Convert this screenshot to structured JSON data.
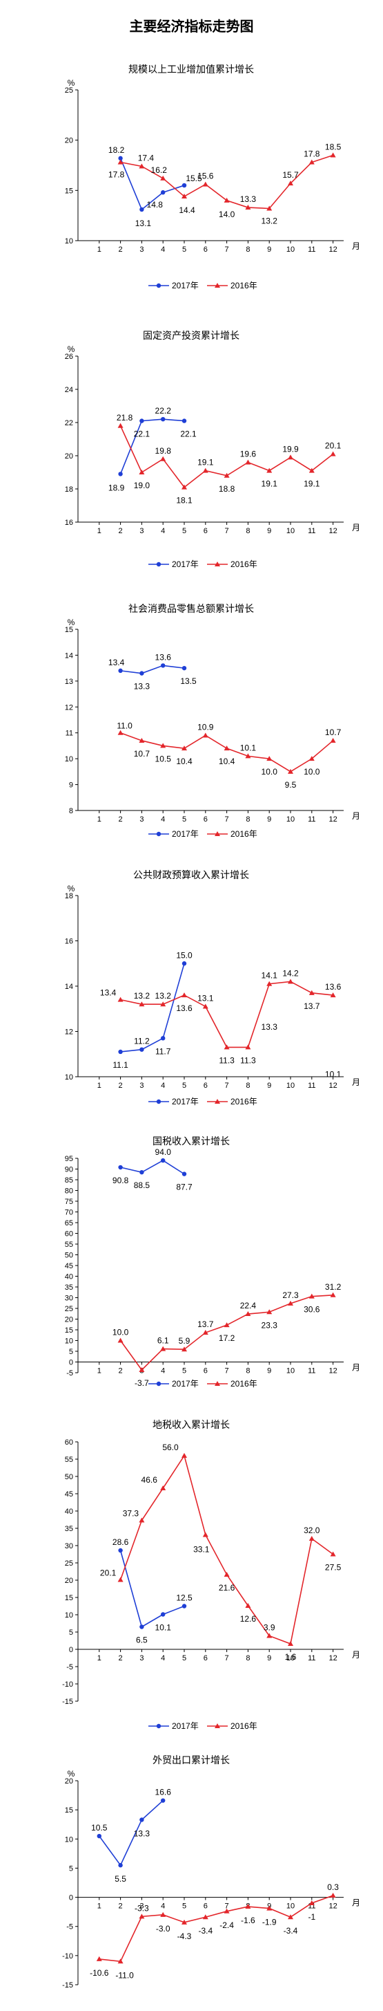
{
  "page_title": "主要经济指标走势图",
  "chart_data": [
    {
      "type": "line",
      "title": "规模以上工业增加值累计增长",
      "ylabel": "%",
      "xlabel": "月",
      "ylim": [
        10,
        25
      ],
      "yticks": [
        10,
        15,
        20,
        25
      ],
      "x": [
        1,
        2,
        3,
        4,
        5,
        6,
        7,
        8,
        9,
        10,
        11,
        12
      ],
      "legend_position": "bottom",
      "series": [
        {
          "name": "2017年",
          "color": "#1f3fd6",
          "marker": "circle",
          "points": [
            [
              2,
              18.2
            ],
            [
              3,
              13.1
            ],
            [
              4,
              14.8
            ],
            [
              5,
              15.5
            ]
          ],
          "labels": [
            "18.2",
            "13.1",
            "14.8",
            "15.5"
          ]
        },
        {
          "name": "2016年",
          "color": "#e3262b",
          "marker": "triangle",
          "points": [
            [
              2,
              17.8
            ],
            [
              3,
              17.4
            ],
            [
              4,
              16.2
            ],
            [
              5,
              14.4
            ],
            [
              6,
              15.6
            ],
            [
              7,
              14.0
            ],
            [
              8,
              13.3
            ],
            [
              9,
              13.2
            ],
            [
              10,
              15.7
            ],
            [
              11,
              17.8
            ],
            [
              12,
              18.5
            ]
          ],
          "labels": [
            "17.8",
            "17.4",
            "16.2",
            "14.4",
            "15.6",
            "14.0",
            "13.3",
            "13.2",
            "15.7",
            "17.8",
            "18.5"
          ]
        }
      ]
    },
    {
      "type": "line",
      "title": "固定资产投资累计增长",
      "ylabel": "%",
      "xlabel": "月",
      "ylim": [
        16,
        26
      ],
      "yticks": [
        16,
        18,
        20,
        22,
        24,
        26
      ],
      "x": [
        1,
        2,
        3,
        4,
        5,
        6,
        7,
        8,
        9,
        10,
        11,
        12
      ],
      "legend_position": "bottom",
      "series": [
        {
          "name": "2017年",
          "color": "#1f3fd6",
          "marker": "circle",
          "points": [
            [
              2,
              18.9
            ],
            [
              3,
              22.1
            ],
            [
              4,
              22.2
            ],
            [
              5,
              22.1
            ]
          ],
          "labels": [
            "18.9",
            "22.1",
            "22.2",
            "22.1"
          ]
        },
        {
          "name": "2016年",
          "color": "#e3262b",
          "marker": "triangle",
          "points": [
            [
              2,
              21.8
            ],
            [
              3,
              19.0
            ],
            [
              4,
              19.8
            ],
            [
              5,
              18.1
            ],
            [
              6,
              19.1
            ],
            [
              7,
              18.8
            ],
            [
              8,
              19.6
            ],
            [
              9,
              19.1
            ],
            [
              10,
              19.9
            ],
            [
              11,
              19.1
            ],
            [
              12,
              20.1
            ]
          ],
          "labels": [
            "21.8",
            "19.0",
            "19.8",
            "18.1",
            "19.1",
            "18.8",
            "19.6",
            "19.1",
            "19.9",
            "19.1",
            "20.1"
          ]
        }
      ]
    },
    {
      "type": "line",
      "title": "社会消费品零售总额累计增长",
      "ylabel": "%",
      "xlabel": "月",
      "ylim": [
        8,
        15
      ],
      "yticks": [
        8,
        9,
        10,
        11,
        12,
        13,
        14,
        15
      ],
      "x": [
        1,
        2,
        3,
        4,
        5,
        6,
        7,
        8,
        9,
        10,
        11,
        12
      ],
      "legend_position": "bottom",
      "series": [
        {
          "name": "2017年",
          "color": "#1f3fd6",
          "marker": "circle",
          "points": [
            [
              2,
              13.4
            ],
            [
              3,
              13.3
            ],
            [
              4,
              13.6
            ],
            [
              5,
              13.5
            ]
          ],
          "labels": [
            "13.4",
            "13.3",
            "13.6",
            "13.5"
          ]
        },
        {
          "name": "2016年",
          "color": "#e3262b",
          "marker": "triangle",
          "points": [
            [
              2,
              11.0
            ],
            [
              3,
              10.7
            ],
            [
              4,
              10.5
            ],
            [
              5,
              10.4
            ],
            [
              6,
              10.9
            ],
            [
              7,
              10.4
            ],
            [
              8,
              10.1
            ],
            [
              9,
              10.0
            ],
            [
              10,
              9.5
            ],
            [
              11,
              10.0
            ],
            [
              12,
              10.7
            ]
          ],
          "labels": [
            "11.0",
            "10.7",
            "10.5",
            "10.4",
            "10.9",
            "10.4",
            "10.1",
            "10.0",
            "9.5",
            "10.0",
            "10.7"
          ]
        }
      ]
    },
    {
      "type": "line",
      "title": "公共财政预算收入累计增长",
      "ylabel": "%",
      "xlabel": "月",
      "ylim": [
        10,
        18
      ],
      "yticks": [
        10,
        12,
        14,
        16,
        18
      ],
      "x": [
        1,
        2,
        3,
        4,
        5,
        6,
        7,
        8,
        9,
        10,
        11,
        12
      ],
      "legend_position": "bottom",
      "series": [
        {
          "name": "2017年",
          "color": "#1f3fd6",
          "marker": "circle",
          "points": [
            [
              2,
              11.1
            ],
            [
              3,
              11.2
            ],
            [
              4,
              11.7
            ],
            [
              5,
              15.0
            ]
          ],
          "labels": [
            "11.1",
            "11.2",
            "11.7",
            "15.0"
          ]
        },
        {
          "name": "2016年",
          "color": "#e3262b",
          "marker": "triangle",
          "points": [
            [
              2,
              13.4
            ],
            [
              3,
              13.2
            ],
            [
              4,
              13.2
            ],
            [
              5,
              13.6
            ],
            [
              6,
              13.1
            ],
            [
              7,
              11.3
            ],
            [
              8,
              11.3
            ],
            [
              9,
              14.1
            ],
            [
              10,
              14.2
            ],
            [
              11,
              13.7
            ],
            [
              12,
              13.6
            ]
          ],
          "labels": [
            "13.4",
            "13.2",
            "13.2",
            "13.6",
            "13.1",
            "11.3",
            "11.3",
            "14.1",
            "14.2",
            "13.7",
            "13.6"
          ]
        }
      ],
      "extra_labels": [
        {
          "text": "13.3",
          "x": 9,
          "y": 12.2
        },
        {
          "text": "10.1",
          "x": 12,
          "y": 10.1
        }
      ]
    },
    {
      "type": "line",
      "title": "国税收入累计增长",
      "ylabel": "",
      "xlabel": "月",
      "ylim": [
        -5,
        95
      ],
      "yticks": [
        -5,
        0,
        5,
        10,
        15,
        20,
        25,
        30,
        35,
        40,
        45,
        50,
        55,
        60,
        65,
        70,
        75,
        80,
        85,
        90,
        95
      ],
      "x": [
        1,
        2,
        3,
        4,
        5,
        6,
        7,
        8,
        9,
        10,
        11,
        12
      ],
      "legend_position": "bottom",
      "series": [
        {
          "name": "2017年",
          "color": "#1f3fd6",
          "marker": "circle",
          "points": [
            [
              2,
              90.8
            ],
            [
              3,
              88.5
            ],
            [
              4,
              94.0
            ],
            [
              5,
              87.7
            ]
          ],
          "labels": [
            "90.8",
            "88.5",
            "94.0",
            "87.7"
          ]
        },
        {
          "name": "2016年",
          "color": "#e3262b",
          "marker": "triangle",
          "points": [
            [
              2,
              10.0
            ],
            [
              3,
              -3.7
            ],
            [
              4,
              6.1
            ],
            [
              5,
              5.9
            ],
            [
              6,
              13.7
            ],
            [
              7,
              17.2
            ],
            [
              8,
              22.4
            ],
            [
              9,
              23.3
            ],
            [
              10,
              27.3
            ],
            [
              11,
              30.6
            ],
            [
              12,
              31.2
            ]
          ],
          "labels": [
            "10.0",
            "-3.7",
            "6.1",
            "5.9",
            "13.7",
            "17.2",
            "22.4",
            "23.3",
            "27.3",
            "30.6",
            "31.2"
          ]
        }
      ]
    },
    {
      "type": "line",
      "title": "地税收入累计增长",
      "ylabel": "",
      "xlabel": "月",
      "ylim": [
        -15,
        60
      ],
      "yticks": [
        -15,
        -10,
        -5,
        0,
        5,
        10,
        15,
        20,
        25,
        30,
        35,
        40,
        45,
        50,
        55,
        60
      ],
      "x": [
        1,
        2,
        3,
        4,
        5,
        6,
        7,
        8,
        9,
        10,
        11,
        12
      ],
      "legend_position": "bottom",
      "series": [
        {
          "name": "2017年",
          "color": "#1f3fd6",
          "marker": "circle",
          "points": [
            [
              2,
              28.6
            ],
            [
              3,
              6.5
            ],
            [
              4,
              10.1
            ],
            [
              5,
              12.5
            ]
          ],
          "labels": [
            "28.6",
            "6.5",
            "10.1",
            "12.5"
          ]
        },
        {
          "name": "2016年",
          "color": "#e3262b",
          "marker": "triangle",
          "points": [
            [
              2,
              20.1
            ],
            [
              3,
              37.3
            ],
            [
              4,
              46.6
            ],
            [
              5,
              56.0
            ],
            [
              6,
              33.1
            ],
            [
              7,
              21.6
            ],
            [
              8,
              12.6
            ],
            [
              9,
              3.9
            ],
            [
              10,
              1.6
            ],
            [
              11,
              32.0
            ],
            [
              12,
              27.5
            ]
          ],
          "labels": [
            "20.1",
            "37.3",
            "46.6",
            "56.0",
            "33.1",
            "21.6",
            "12.6",
            "3.9",
            "1.6",
            "32.0",
            "27.5"
          ]
        }
      ]
    },
    {
      "type": "line",
      "title": "外贸出口累计增长",
      "ylabel": "%",
      "xlabel": "月",
      "ylim": [
        -15,
        20
      ],
      "yticks": [
        -15,
        -10,
        -5,
        0,
        5,
        10,
        15,
        20
      ],
      "x": [
        1,
        2,
        3,
        4,
        5,
        6,
        7,
        8,
        9,
        10,
        11,
        12
      ],
      "legend_position": "none",
      "series": [
        {
          "name": "2017年",
          "color": "#1f3fd6",
          "marker": "circle",
          "points": [
            [
              1,
              10.5
            ],
            [
              2,
              5.5
            ],
            [
              3,
              13.3
            ],
            [
              4,
              16.6
            ]
          ],
          "labels": [
            "10.5",
            "5.5",
            "13.3",
            "16.6"
          ]
        },
        {
          "name": "2016年",
          "color": "#e3262b",
          "marker": "triangle",
          "points": [
            [
              1,
              -10.6
            ],
            [
              2,
              -11.0
            ],
            [
              3,
              -3.3
            ],
            [
              4,
              -3.0
            ],
            [
              5,
              -4.3
            ],
            [
              6,
              -3.4
            ],
            [
              7,
              -2.4
            ],
            [
              8,
              -1.6
            ],
            [
              9,
              -1.9
            ],
            [
              10,
              -3.4
            ],
            [
              11,
              -1.0
            ],
            [
              12,
              0.3
            ]
          ],
          "labels": [
            "-10.6",
            "-11.0",
            "-3.3",
            "-3.0",
            "-4.3",
            "-3.4",
            "-2.4",
            "-1.6",
            "-1.9",
            "-3.4",
            "-1",
            "0.3"
          ]
        }
      ]
    }
  ]
}
